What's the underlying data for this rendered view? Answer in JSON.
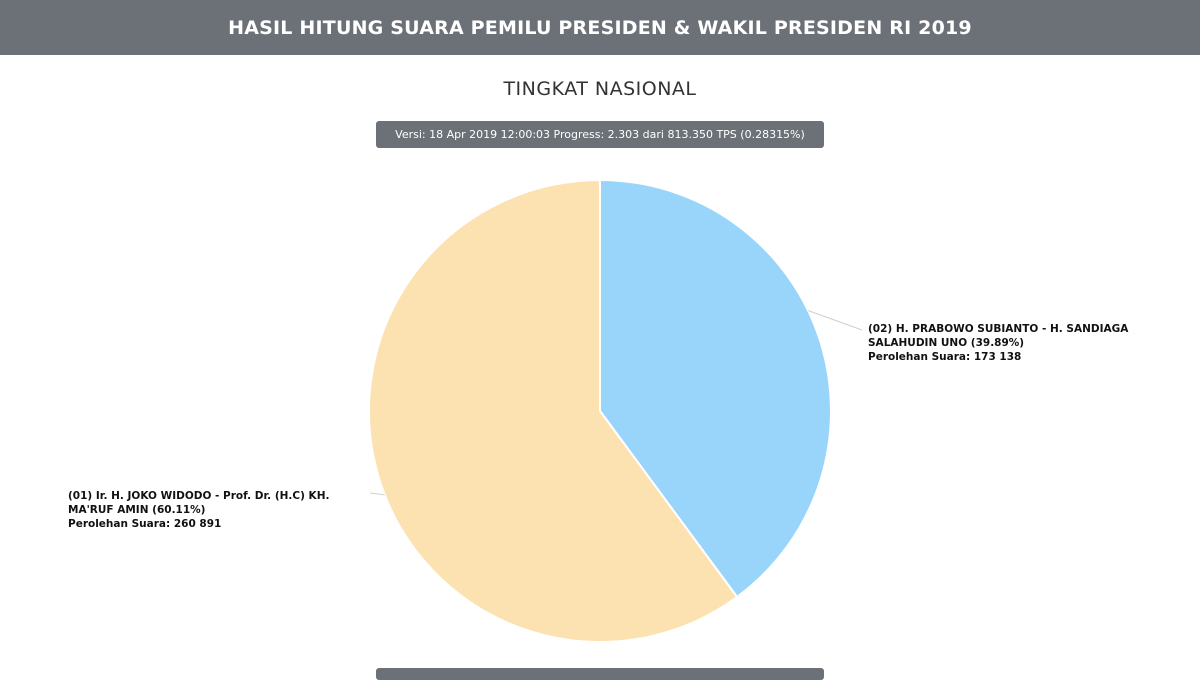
{
  "header": {
    "title": "HASIL HITUNG SUARA PEMILU PRESIDEN & WAKIL PRESIDEN RI 2019"
  },
  "version": {
    "text": "Versi: 18 Apr 2019 12:00:03 Progress: 2.303 dari 813.350 TPS (0.28315%)"
  },
  "chart_data": {
    "type": "pie",
    "title": "TINGKAT NASIONAL",
    "slices": [
      {
        "label": "(01) Ir. H. JOKO WIDODO - Prof. Dr. (H.C) KH. MA'RUF AMIN (60.11%)",
        "percent": 60.11,
        "votes_text": "Perolehan Suara: 260 891",
        "value": 260891,
        "color": "#fce2b0"
      },
      {
        "label": "(02) H. PRABOWO SUBIANTO - H. SANDIAGA SALAHUDIN UNO (39.89%)",
        "percent": 39.89,
        "votes_text": "Perolehan Suara: 173 138",
        "value": 173138,
        "color": "#99d5fa"
      }
    ]
  }
}
